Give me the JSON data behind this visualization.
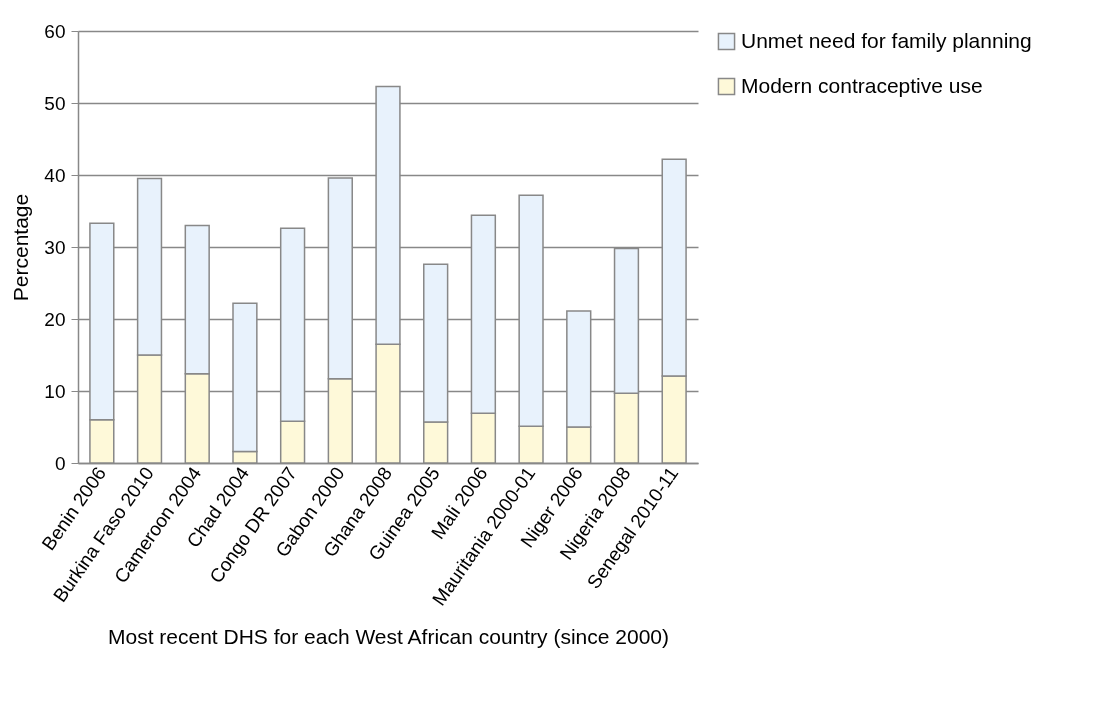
{
  "chart_data": {
    "type": "bar",
    "stacked": true,
    "xlabel": "Most recent DHS for each West African country (since 2000)",
    "ylabel": "Percentage",
    "categories": [
      "Benin 2006",
      "Burkina Faso 2010",
      "Cameroon 2004",
      "Chad 2004",
      "Congo DR 2007",
      "Gabon 2000",
      "Ghana 2008",
      "Guinea 2005",
      "Mali 2006",
      "Mauritania 2000-01",
      "Niger 2006",
      "Nigeria 2008",
      "Senegal 2010-11"
    ],
    "series": [
      {
        "name": "Modern contraceptive use",
        "color": "#fef9d9",
        "values": [
          6.0,
          15.0,
          12.4,
          1.6,
          5.8,
          11.7,
          16.5,
          5.7,
          6.9,
          5.1,
          5.0,
          9.7,
          12.1
        ]
      },
      {
        "name": "Unmet need for family planning",
        "color": "#e8f2fc",
        "values": [
          27.3,
          24.5,
          20.6,
          20.6,
          26.8,
          27.9,
          35.8,
          21.9,
          27.5,
          32.1,
          16.1,
          20.1,
          30.1
        ]
      }
    ],
    "ylim": [
      0,
      60
    ],
    "yticks": [
      0,
      10,
      20,
      30,
      40,
      50,
      60
    ],
    "grid": "y",
    "legend": "right"
  }
}
